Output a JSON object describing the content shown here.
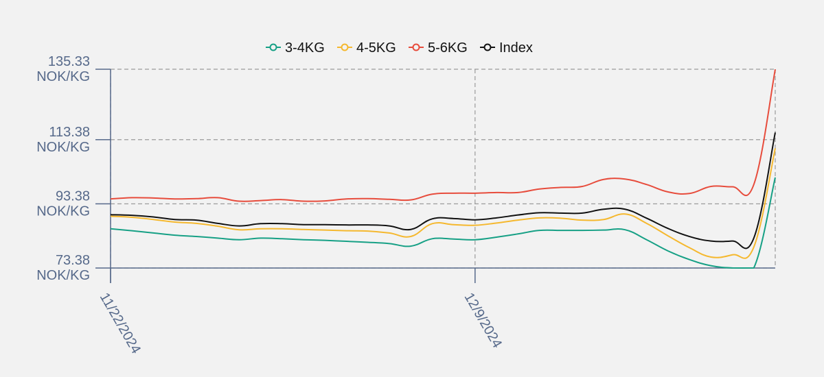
{
  "chart_data": {
    "type": "line",
    "x": [
      "11/22/2024",
      "11/23/2024",
      "11/24/2024",
      "11/25/2024",
      "11/26/2024",
      "11/27/2024",
      "11/28/2024",
      "11/29/2024",
      "11/30/2024",
      "12/1/2024",
      "12/2/2024",
      "12/3/2024",
      "12/4/2024",
      "12/5/2024",
      "12/6/2024",
      "12/7/2024",
      "12/8/2024",
      "12/9/2024",
      "12/10/2024",
      "12/11/2024",
      "12/12/2024",
      "12/13/2024",
      "12/14/2024",
      "12/15/2024",
      "12/16/2024",
      "12/17/2024",
      "12/18/2024",
      "12/19/2024",
      "12/20/2024",
      "12/21/2024",
      "12/22/2024",
      "12/23/2024"
    ],
    "x_tick_labels": [
      "11/22/2024",
      "12/9/2024"
    ],
    "y_ticks": [
      73.38,
      93.38,
      113.38,
      135.33
    ],
    "y_tick_labels": [
      "73.38",
      "93.38",
      "113.38",
      "135.33"
    ],
    "y_unit": "NOK/KG",
    "ylim": [
      73.38,
      135.33
    ],
    "grid": true,
    "legend_position": "top",
    "series": [
      {
        "name": "3-4KG",
        "color": "#16a085",
        "values": [
          85.6,
          85.0,
          84.3,
          83.6,
          83.2,
          82.7,
          82.2,
          82.7,
          82.5,
          82.2,
          82.0,
          81.7,
          81.4,
          81.0,
          80.2,
          82.5,
          82.4,
          82.2,
          83.0,
          84.0,
          85.1,
          85.1,
          85.1,
          85.2,
          85.3,
          82.2,
          78.7,
          76.0,
          74.1,
          73.4,
          73.4,
          101.6
        ]
      },
      {
        "name": "4-5KG",
        "color": "#f5b82e",
        "values": [
          89.5,
          89.2,
          88.5,
          87.7,
          87.3,
          86.4,
          85.3,
          85.6,
          85.6,
          85.4,
          85.2,
          85.0,
          84.9,
          84.3,
          83.2,
          87.2,
          86.9,
          86.7,
          87.4,
          88.3,
          89.0,
          88.9,
          88.3,
          88.5,
          90.2,
          87.3,
          83.4,
          79.7,
          76.8,
          77.5,
          79.9,
          110.7
        ]
      },
      {
        "name": "5-6KG",
        "color": "#e74c3c",
        "values": [
          94.9,
          95.3,
          95.2,
          94.9,
          95.0,
          95.3,
          94.2,
          94.4,
          94.7,
          94.2,
          94.3,
          94.9,
          95.0,
          94.8,
          94.6,
          96.4,
          96.7,
          96.7,
          96.9,
          96.9,
          98.0,
          98.5,
          98.8,
          101.0,
          101.1,
          99.4,
          97.1,
          96.6,
          98.8,
          98.7,
          99.4,
          135.3
        ]
      },
      {
        "name": "Index",
        "color": "#111111",
        "values": [
          90.0,
          89.8,
          89.3,
          88.5,
          88.3,
          87.3,
          86.5,
          87.2,
          87.2,
          86.9,
          86.9,
          86.8,
          86.8,
          86.5,
          85.4,
          88.7,
          88.8,
          88.4,
          89.0,
          89.9,
          90.6,
          90.5,
          90.5,
          91.7,
          91.7,
          88.9,
          85.7,
          83.2,
          81.8,
          81.8,
          82.7,
          115.6
        ]
      }
    ]
  }
}
